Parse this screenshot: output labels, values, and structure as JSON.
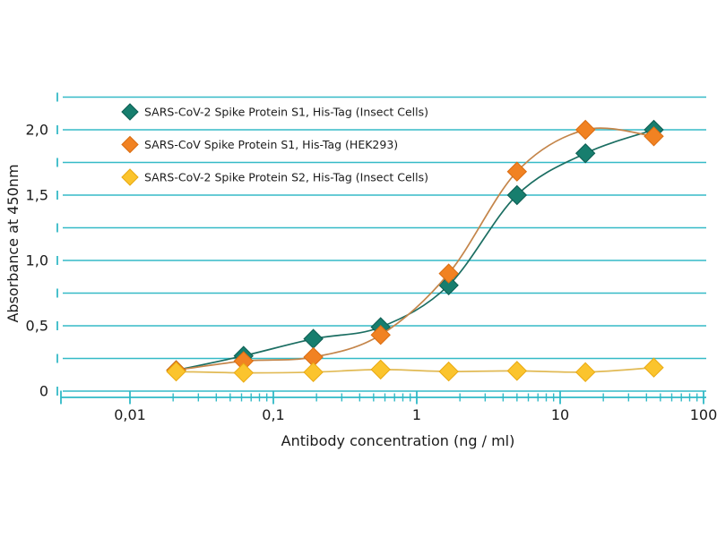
{
  "chart_data": {
    "type": "line",
    "x_scale": "log",
    "title": "",
    "xlabel": "Antibody concentration (ng / ml)",
    "ylabel": "Absorbance at 450nm",
    "x_range": [
      0.0032,
      100
    ],
    "y_range": [
      0,
      2.25
    ],
    "y_grid_step": 0.25,
    "grid": true,
    "legend_position": "top-left",
    "x_ticks": [
      {
        "value": 0.01,
        "label": "0,01"
      },
      {
        "value": 0.1,
        "label": "0,1"
      },
      {
        "value": 1,
        "label": "1"
      },
      {
        "value": 10,
        "label": "10"
      },
      {
        "value": 100,
        "label": "100"
      }
    ],
    "y_ticks": [
      {
        "value": 0,
        "label": "0"
      },
      {
        "value": 0.5,
        "label": "0,5"
      },
      {
        "value": 1.0,
        "label": "1,0"
      },
      {
        "value": 1.5,
        "label": "1,5"
      },
      {
        "value": 2.0,
        "label": "2,0"
      }
    ],
    "series": [
      {
        "name": "SARS-CoV-2 Spike Protein S1, His-Tag (Insect Cells)",
        "marker": "diamond",
        "marker_color": "#177e6e",
        "marker_edge_color": "#0c5d52",
        "line_color": "#1b6e62",
        "x": [
          0.021,
          0.062,
          0.19,
          0.56,
          1.67,
          5,
          15,
          45
        ],
        "y": [
          0.16,
          0.27,
          0.4,
          0.49,
          0.81,
          1.5,
          1.82,
          2.0
        ]
      },
      {
        "name": "SARS-CoV Spike Protein S1, His-Tag (HEK293)",
        "marker": "diamond",
        "marker_color": "#f18222",
        "marker_edge_color": "#da6c10",
        "line_color": "#c4854a",
        "x": [
          0.021,
          0.062,
          0.19,
          0.56,
          1.67,
          5,
          15,
          45
        ],
        "y": [
          0.16,
          0.23,
          0.26,
          0.43,
          0.9,
          1.68,
          2.0,
          1.95
        ]
      },
      {
        "name": "SARS-CoV-2 Spike Protein S2, His-Tag (Insect Cells)",
        "marker": "diamond",
        "marker_color": "#fbc42d",
        "marker_edge_color": "#e9a911",
        "line_color": "#e1ba55",
        "x": [
          0.021,
          0.062,
          0.19,
          0.56,
          1.67,
          5,
          15,
          45
        ],
        "y": [
          0.15,
          0.14,
          0.145,
          0.165,
          0.15,
          0.155,
          0.145,
          0.18
        ]
      }
    ],
    "colors": {
      "grid": "#35bac7",
      "axis": "#2fb9c6",
      "text": "#1b1b1b",
      "background": "#ffffff"
    }
  }
}
